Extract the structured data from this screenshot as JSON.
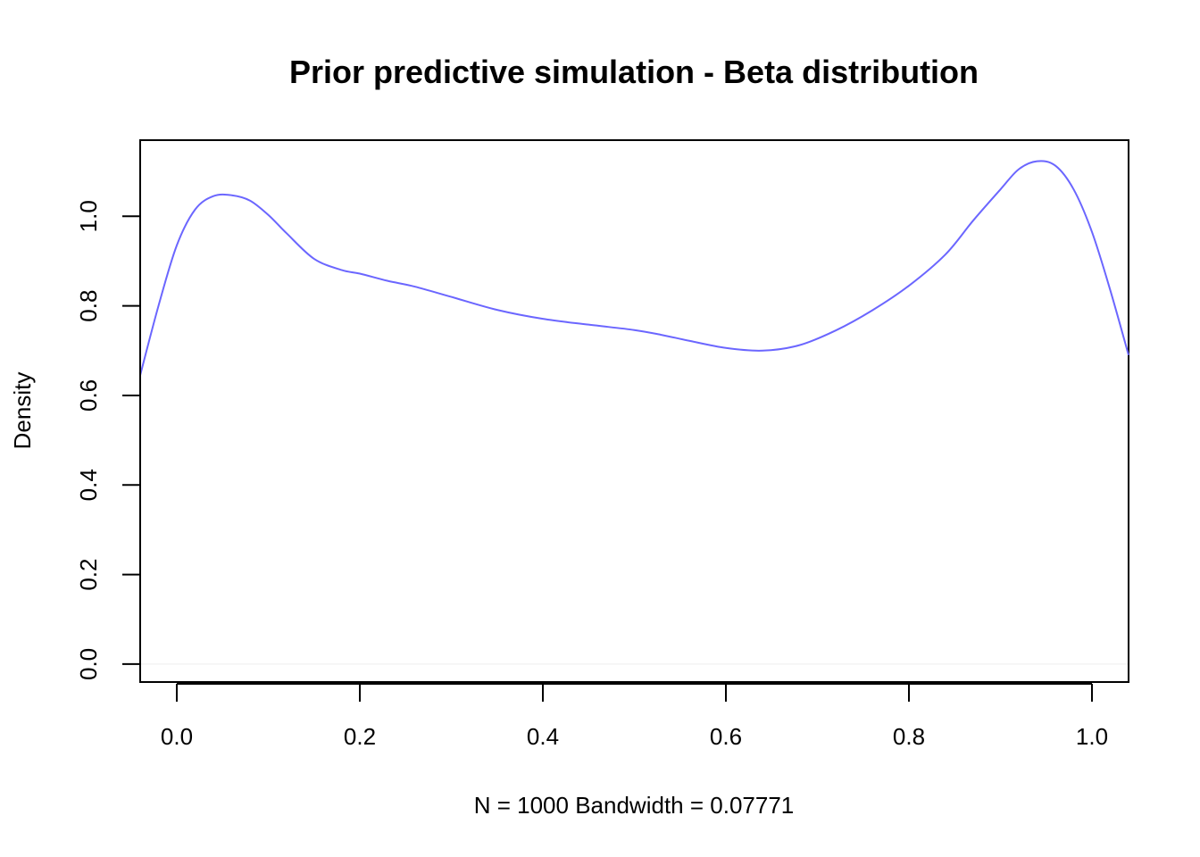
{
  "chart_data": {
    "type": "line",
    "title": "Prior predictive simulation - Beta distribution",
    "xlabel": "N = 1000   Bandwidth = 0.07771",
    "ylabel": "Density",
    "xlim": [
      -0.04,
      1.04
    ],
    "ylim": [
      -0.04,
      1.17
    ],
    "x_ticks": [
      0.0,
      0.2,
      0.4,
      0.6,
      0.8,
      1.0
    ],
    "x_tick_labels": [
      "0.0",
      "0.2",
      "0.4",
      "0.6",
      "0.8",
      "1.0"
    ],
    "y_ticks": [
      0.0,
      0.2,
      0.4,
      0.6,
      0.8,
      1.0
    ],
    "y_tick_labels": [
      "0.0",
      "0.2",
      "0.4",
      "0.6",
      "0.8",
      "1.0"
    ],
    "grid": false,
    "legend": "none",
    "colors": {
      "line": "#6b66ff",
      "baseline": "#eeeeee",
      "frame": "#000000"
    },
    "baseline_y": 0,
    "series": [
      {
        "x": [
          -0.04,
          -0.02,
          0.0,
          0.02,
          0.04,
          0.06,
          0.08,
          0.1,
          0.12,
          0.15,
          0.18,
          0.2,
          0.23,
          0.26,
          0.3,
          0.35,
          0.4,
          0.45,
          0.5,
          0.53,
          0.56,
          0.6,
          0.64,
          0.68,
          0.72,
          0.76,
          0.8,
          0.84,
          0.87,
          0.9,
          0.92,
          0.94,
          0.96,
          0.98,
          1.0,
          1.02,
          1.04
        ],
        "y": [
          0.645,
          0.8,
          0.935,
          1.015,
          1.045,
          1.047,
          1.035,
          1.003,
          0.962,
          0.905,
          0.88,
          0.872,
          0.856,
          0.843,
          0.82,
          0.791,
          0.771,
          0.758,
          0.746,
          0.735,
          0.722,
          0.706,
          0.7,
          0.712,
          0.745,
          0.79,
          0.845,
          0.915,
          0.99,
          1.06,
          1.105,
          1.123,
          1.113,
          1.06,
          0.965,
          0.835,
          0.69
        ]
      }
    ]
  }
}
